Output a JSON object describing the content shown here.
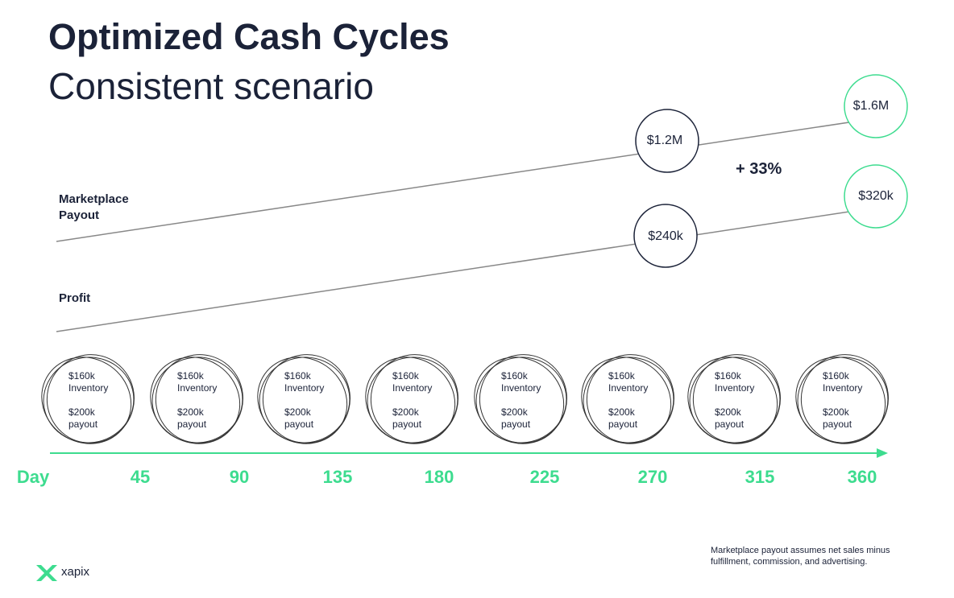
{
  "header": {
    "title": "Optimized Cash Cycles",
    "subtitle": "Consistent scenario"
  },
  "rows": [
    {
      "label": "Marketplace Payout",
      "start": "$1.2M",
      "end": "$1.6M"
    },
    {
      "label": "Profit",
      "start": "$240k",
      "end": "$320k"
    }
  ],
  "growth": "+ 33%",
  "cycles": [
    {
      "inventory": "$160k Inventory",
      "payout": "$200k payout"
    },
    {
      "inventory": "$160k Inventory",
      "payout": "$200k payout"
    },
    {
      "inventory": "$160k Inventory",
      "payout": "$200k payout"
    },
    {
      "inventory": "$160k Inventory",
      "payout": "$200k payout"
    },
    {
      "inventory": "$160k Inventory",
      "payout": "$200k payout"
    },
    {
      "inventory": "$160k Inventory",
      "payout": "$200k payout"
    },
    {
      "inventory": "$160k Inventory",
      "payout": "$200k payout"
    },
    {
      "inventory": "$160k Inventory",
      "payout": "$200k payout"
    }
  ],
  "timeline": {
    "label": "Day",
    "days": [
      "45",
      "90",
      "135",
      "180",
      "225",
      "270",
      "315",
      "360"
    ]
  },
  "footnote": "Marketplace payout assumes net sales minus fulfillment, commission, and advertising.",
  "logo": "xapix"
}
